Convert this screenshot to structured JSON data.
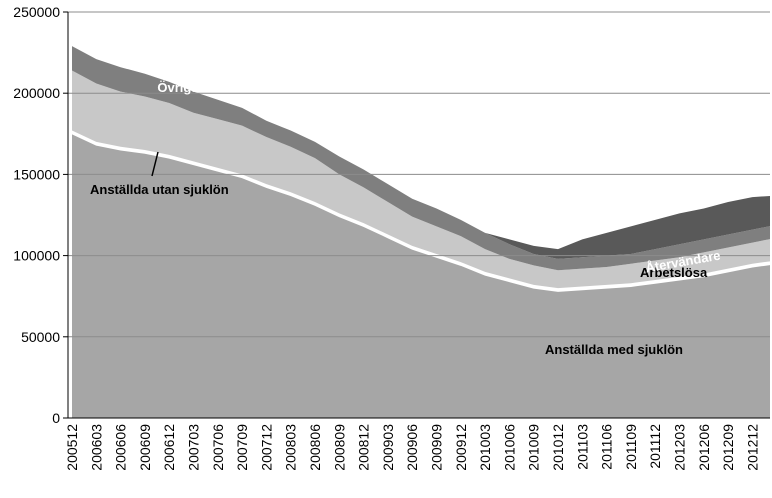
{
  "chart_data": {
    "type": "stacked_area",
    "categories": [
      "200512",
      "200603",
      "200606",
      "200609",
      "200612",
      "200703",
      "200706",
      "200709",
      "200712",
      "200803",
      "200806",
      "200809",
      "200812",
      "200903",
      "200906",
      "200909",
      "200912",
      "201003",
      "201006",
      "201009",
      "201012",
      "201103",
      "201106",
      "201109",
      "201112",
      "201203",
      "201206",
      "201209",
      "201212",
      null
    ],
    "series": [
      {
        "name": "Anställda med sjuklön",
        "color": "#a6a6a6",
        "values": [
          175000,
          168000,
          165000,
          163000,
          160000,
          156000,
          152000,
          148000,
          142000,
          137000,
          131000,
          124000,
          118000,
          111000,
          104000,
          99000,
          94000,
          88000,
          84000,
          80000,
          78000,
          79000,
          80000,
          81000,
          83000,
          85000,
          87000,
          90000,
          93000,
          95000
        ]
      },
      {
        "name": "Anställda utan sjuklön",
        "color": "#ffffff",
        "values": [
          2000,
          2000,
          2000,
          2000,
          2000,
          2000,
          2000,
          2000,
          2000,
          2000,
          2000,
          2000,
          2000,
          2000,
          2000,
          2000,
          2000,
          2000,
          2000,
          2000,
          2000,
          2000,
          2000,
          2000,
          2000,
          2000,
          2000,
          2000,
          2000,
          2000
        ]
      },
      {
        "name": "Arbetslösa",
        "color": "#c8c8c8",
        "values": [
          37000,
          36000,
          34000,
          33000,
          32000,
          30000,
          30000,
          30000,
          29000,
          28000,
          27000,
          24000,
          22000,
          20000,
          18000,
          17000,
          16000,
          14000,
          12000,
          12000,
          11000,
          11000,
          11000,
          12000,
          12000,
          12000,
          13000,
          13000,
          13000,
          14000
        ]
      },
      {
        "name": "Övriga",
        "color": "#7f7f7f",
        "values": [
          15000,
          15000,
          15000,
          14000,
          13000,
          13000,
          12000,
          11000,
          10000,
          10000,
          10000,
          11000,
          11000,
          11000,
          11000,
          11000,
          10000,
          10000,
          9000,
          7000,
          7000,
          7000,
          7000,
          6000,
          7000,
          8000,
          8000,
          8000,
          8000,
          8000
        ]
      },
      {
        "name": "Återvändare",
        "color": "#595959",
        "values": [
          0,
          0,
          0,
          0,
          0,
          0,
          0,
          0,
          0,
          0,
          0,
          0,
          0,
          0,
          0,
          0,
          0,
          0,
          3000,
          5000,
          6000,
          11000,
          14000,
          17000,
          18000,
          19000,
          19000,
          20000,
          20000,
          18000
        ]
      }
    ],
    "ylim": [
      0,
      250000
    ],
    "yticks": [
      0,
      50000,
      100000,
      150000,
      200000,
      250000
    ],
    "grid": true
  }
}
